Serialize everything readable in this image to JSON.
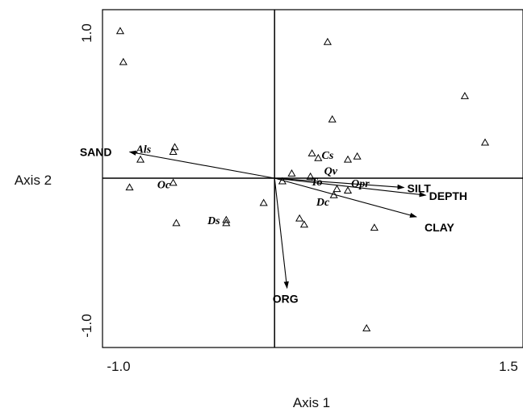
{
  "chart_data": {
    "type": "scatter",
    "xlabel": "Axis 1",
    "ylabel": "Axis 2",
    "xlim": [
      -1.0,
      1.5
    ],
    "ylim": [
      -1.0,
      1.0
    ],
    "x_tick_labels": [
      "-1.0",
      "1.5"
    ],
    "y_tick_labels": [
      "1.0",
      "-1.0"
    ],
    "grid": false,
    "sites": [
      {
        "x": -0.99,
        "y": 0.95
      },
      {
        "x": -0.97,
        "y": 0.75
      },
      {
        "x": 0.34,
        "y": 0.88
      },
      {
        "x": 1.22,
        "y": 0.53
      },
      {
        "x": 0.37,
        "y": 0.38
      },
      {
        "x": 1.35,
        "y": 0.23
      },
      {
        "x": -0.64,
        "y": 0.2
      },
      {
        "x": -0.65,
        "y": 0.17
      },
      {
        "x": 0.24,
        "y": 0.16
      },
      {
        "x": 0.28,
        "y": 0.13
      },
      {
        "x": 0.53,
        "y": 0.14
      },
      {
        "x": 0.47,
        "y": 0.12
      },
      {
        "x": -0.86,
        "y": 0.12
      },
      {
        "x": 0.23,
        "y": 0.01
      },
      {
        "x": 0.11,
        "y": 0.03
      },
      {
        "x": 0.05,
        "y": -0.02
      },
      {
        "x": -0.93,
        "y": -0.06
      },
      {
        "x": -0.65,
        "y": -0.03
      },
      {
        "x": 0.4,
        "y": -0.07
      },
      {
        "x": 0.47,
        "y": -0.08
      },
      {
        "x": 0.38,
        "y": -0.11
      },
      {
        "x": -0.07,
        "y": -0.16
      },
      {
        "x": -0.31,
        "y": -0.27
      },
      {
        "x": -0.31,
        "y": -0.29
      },
      {
        "x": -0.63,
        "y": -0.29
      },
      {
        "x": 0.16,
        "y": -0.26
      },
      {
        "x": 0.19,
        "y": -0.3
      },
      {
        "x": 0.64,
        "y": -0.32
      },
      {
        "x": 0.59,
        "y": -0.97
      }
    ],
    "vectors": [
      {
        "label": "SAND",
        "x": -0.93,
        "y": 0.17
      },
      {
        "label": "SILT",
        "x": 0.83,
        "y": -0.06
      },
      {
        "label": "DEPTH",
        "x": 0.97,
        "y": -0.11
      },
      {
        "label": "CLAY",
        "x": 0.91,
        "y": -0.25
      },
      {
        "label": "ORG",
        "x": 0.08,
        "y": -0.71
      }
    ],
    "species_labels": [
      {
        "label": "Als",
        "x": -0.84,
        "y": 0.19
      },
      {
        "label": "Oc",
        "x": -0.71,
        "y": -0.04
      },
      {
        "label": "Ds",
        "x": -0.39,
        "y": -0.27
      },
      {
        "label": "Cs",
        "x": 0.34,
        "y": 0.15
      },
      {
        "label": "Qv",
        "x": 0.36,
        "y": 0.05
      },
      {
        "label": "To",
        "x": 0.27,
        "y": -0.02
      },
      {
        "label": "Opr",
        "x": 0.55,
        "y": -0.03
      },
      {
        "label": "Dc",
        "x": 0.31,
        "y": -0.15
      }
    ]
  }
}
